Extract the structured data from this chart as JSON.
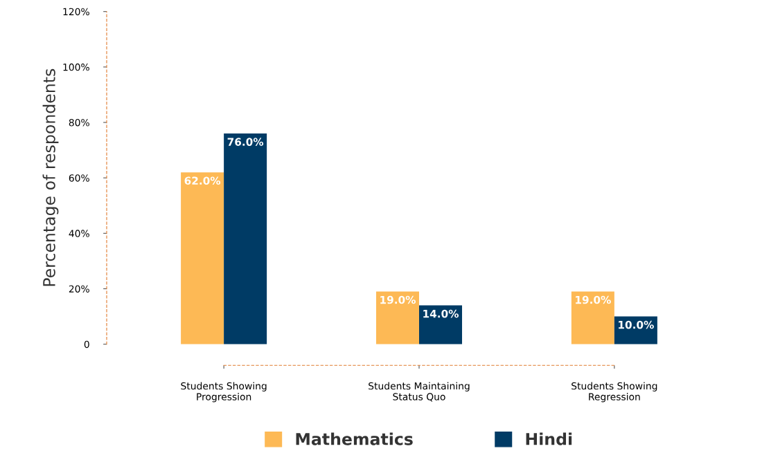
{
  "chart_data": {
    "type": "bar",
    "ylabel": "Percentage of respondents",
    "categories": [
      "Students Showing\nProgression",
      "Students Maintaining\nStatus Quo",
      "Students Showing\nRegression"
    ],
    "series": [
      {
        "name": "Mathematics",
        "color": "#fdb955",
        "values": [
          62,
          19,
          19
        ],
        "value_labels": [
          "62.0%",
          "19.0%",
          "19.0%"
        ]
      },
      {
        "name": "Hindi",
        "color": "#003b65",
        "values": [
          76,
          14,
          10
        ],
        "value_labels": [
          "76.0%",
          "14.0%",
          "10.0%"
        ]
      }
    ],
    "ylim": [
      0,
      120
    ],
    "yticks": [
      {
        "value": 0,
        "label": "0"
      },
      {
        "value": 20,
        "label": "20%"
      },
      {
        "value": 40,
        "label": "40%"
      },
      {
        "value": 60,
        "label": "60%"
      },
      {
        "value": 80,
        "label": "80%"
      },
      {
        "value": 100,
        "label": "100%"
      },
      {
        "value": 120,
        "label": "120%"
      }
    ],
    "grid": false,
    "legend": "bottom"
  }
}
